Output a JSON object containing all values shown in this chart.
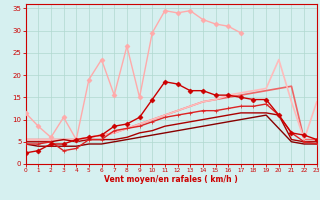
{
  "xlabel": "Vent moyen/en rafales ( km/h )",
  "xlim": [
    0,
    23
  ],
  "ylim": [
    0,
    36
  ],
  "xticks": [
    0,
    1,
    2,
    3,
    4,
    5,
    6,
    7,
    8,
    9,
    10,
    11,
    12,
    13,
    14,
    15,
    16,
    17,
    18,
    19,
    20,
    21,
    22,
    23
  ],
  "yticks": [
    0,
    5,
    10,
    15,
    20,
    25,
    30,
    35
  ],
  "background_color": "#d6f0f0",
  "grid_color": "#b0d8d0",
  "series": [
    {
      "x": [
        0,
        1,
        2,
        3,
        4,
        5,
        6,
        7,
        8,
        9,
        10,
        11,
        12,
        13,
        14,
        15,
        16,
        17,
        18,
        19,
        20,
        21,
        22,
        23
      ],
      "y": [
        2.5,
        3.0,
        4.5,
        4.5,
        5.5,
        6.0,
        6.5,
        8.5,
        9.0,
        10.5,
        14.5,
        18.5,
        18.0,
        16.5,
        16.5,
        15.5,
        15.5,
        15.0,
        14.5,
        14.5,
        11.0,
        7.0,
        6.5,
        5.5
      ],
      "color": "#cc0000",
      "marker": "D",
      "markersize": 2.5,
      "linewidth": 1.0,
      "zorder": 5
    },
    {
      "x": [
        0,
        1,
        2,
        3,
        4,
        5,
        6,
        7,
        8,
        9,
        10,
        11,
        12,
        13,
        14,
        15,
        16,
        17,
        18,
        19,
        20,
        21,
        22,
        23
      ],
      "y": [
        11.5,
        8.5,
        6.0,
        10.5,
        5.5,
        19.0,
        23.5,
        15.5,
        26.5,
        15.0,
        29.5,
        34.5,
        34.0,
        34.5,
        32.5,
        31.5,
        31.0,
        29.5,
        null,
        null,
        null,
        null,
        null,
        null
      ],
      "color": "#ffaaaa",
      "marker": "D",
      "markersize": 2.5,
      "linewidth": 1.0,
      "zorder": 3
    },
    {
      "x": [
        0,
        1,
        2,
        3,
        4,
        5,
        6,
        7,
        8,
        9,
        10,
        11,
        12,
        13,
        14,
        15,
        16,
        17,
        18,
        19,
        20,
        21,
        22,
        23
      ],
      "y": [
        5.5,
        5.5,
        5.5,
        5.5,
        5.5,
        6.0,
        6.5,
        7.0,
        8.0,
        9.0,
        10.0,
        11.0,
        12.0,
        13.0,
        14.0,
        14.5,
        15.0,
        15.5,
        16.0,
        16.5,
        17.0,
        17.5,
        5.5,
        5.5
      ],
      "color": "#ee6666",
      "marker": null,
      "markersize": 0,
      "linewidth": 1.2,
      "zorder": 2
    },
    {
      "x": [
        0,
        1,
        2,
        3,
        4,
        5,
        6,
        7,
        8,
        9,
        10,
        11,
        12,
        13,
        14,
        15,
        16,
        17,
        18,
        19,
        20,
        21,
        22,
        23
      ],
      "y": [
        5.5,
        5.5,
        5.5,
        5.5,
        5.5,
        6.0,
        6.5,
        7.0,
        8.0,
        9.0,
        10.0,
        11.0,
        12.0,
        13.0,
        14.0,
        14.5,
        15.5,
        16.0,
        16.5,
        17.0,
        23.5,
        14.0,
        5.5,
        14.0
      ],
      "color": "#ffbbbb",
      "marker": null,
      "markersize": 0,
      "linewidth": 1.2,
      "zorder": 2
    },
    {
      "x": [
        0,
        1,
        2,
        3,
        4,
        5,
        6,
        7,
        8,
        9,
        10,
        11,
        12,
        13,
        14,
        15,
        16,
        17,
        18,
        19,
        20,
        21,
        22,
        23
      ],
      "y": [
        4.5,
        4.5,
        5.0,
        3.0,
        3.5,
        5.5,
        5.5,
        7.5,
        8.0,
        8.5,
        9.5,
        10.5,
        11.0,
        11.5,
        12.0,
        12.0,
        12.5,
        13.0,
        13.0,
        13.5,
        11.0,
        7.0,
        5.0,
        4.5
      ],
      "color": "#dd2222",
      "marker": "+",
      "markersize": 3.5,
      "linewidth": 1.0,
      "zorder": 4
    },
    {
      "x": [
        0,
        1,
        2,
        3,
        4,
        5,
        6,
        7,
        8,
        9,
        10,
        11,
        12,
        13,
        14,
        15,
        16,
        17,
        18,
        19,
        20,
        21,
        22,
        23
      ],
      "y": [
        5.0,
        5.0,
        5.0,
        5.5,
        5.0,
        5.5,
        5.5,
        5.5,
        6.0,
        7.0,
        7.5,
        8.5,
        9.0,
        9.5,
        10.0,
        10.5,
        11.0,
        11.5,
        11.5,
        11.5,
        11.0,
        5.5,
        5.0,
        5.0
      ],
      "color": "#aa0000",
      "marker": null,
      "markersize": 0,
      "linewidth": 1.0,
      "zorder": 2
    },
    {
      "x": [
        0,
        1,
        2,
        3,
        4,
        5,
        6,
        7,
        8,
        9,
        10,
        11,
        12,
        13,
        14,
        15,
        16,
        17,
        18,
        19,
        20,
        21,
        22,
        23
      ],
      "y": [
        4.5,
        4.0,
        4.0,
        4.0,
        4.0,
        4.5,
        4.5,
        5.0,
        5.5,
        6.0,
        6.5,
        7.0,
        7.5,
        8.0,
        8.5,
        9.0,
        9.5,
        10.0,
        10.5,
        11.0,
        8.0,
        5.0,
        4.5,
        4.5
      ],
      "color": "#880000",
      "marker": null,
      "markersize": 0,
      "linewidth": 1.0,
      "zorder": 2
    }
  ]
}
